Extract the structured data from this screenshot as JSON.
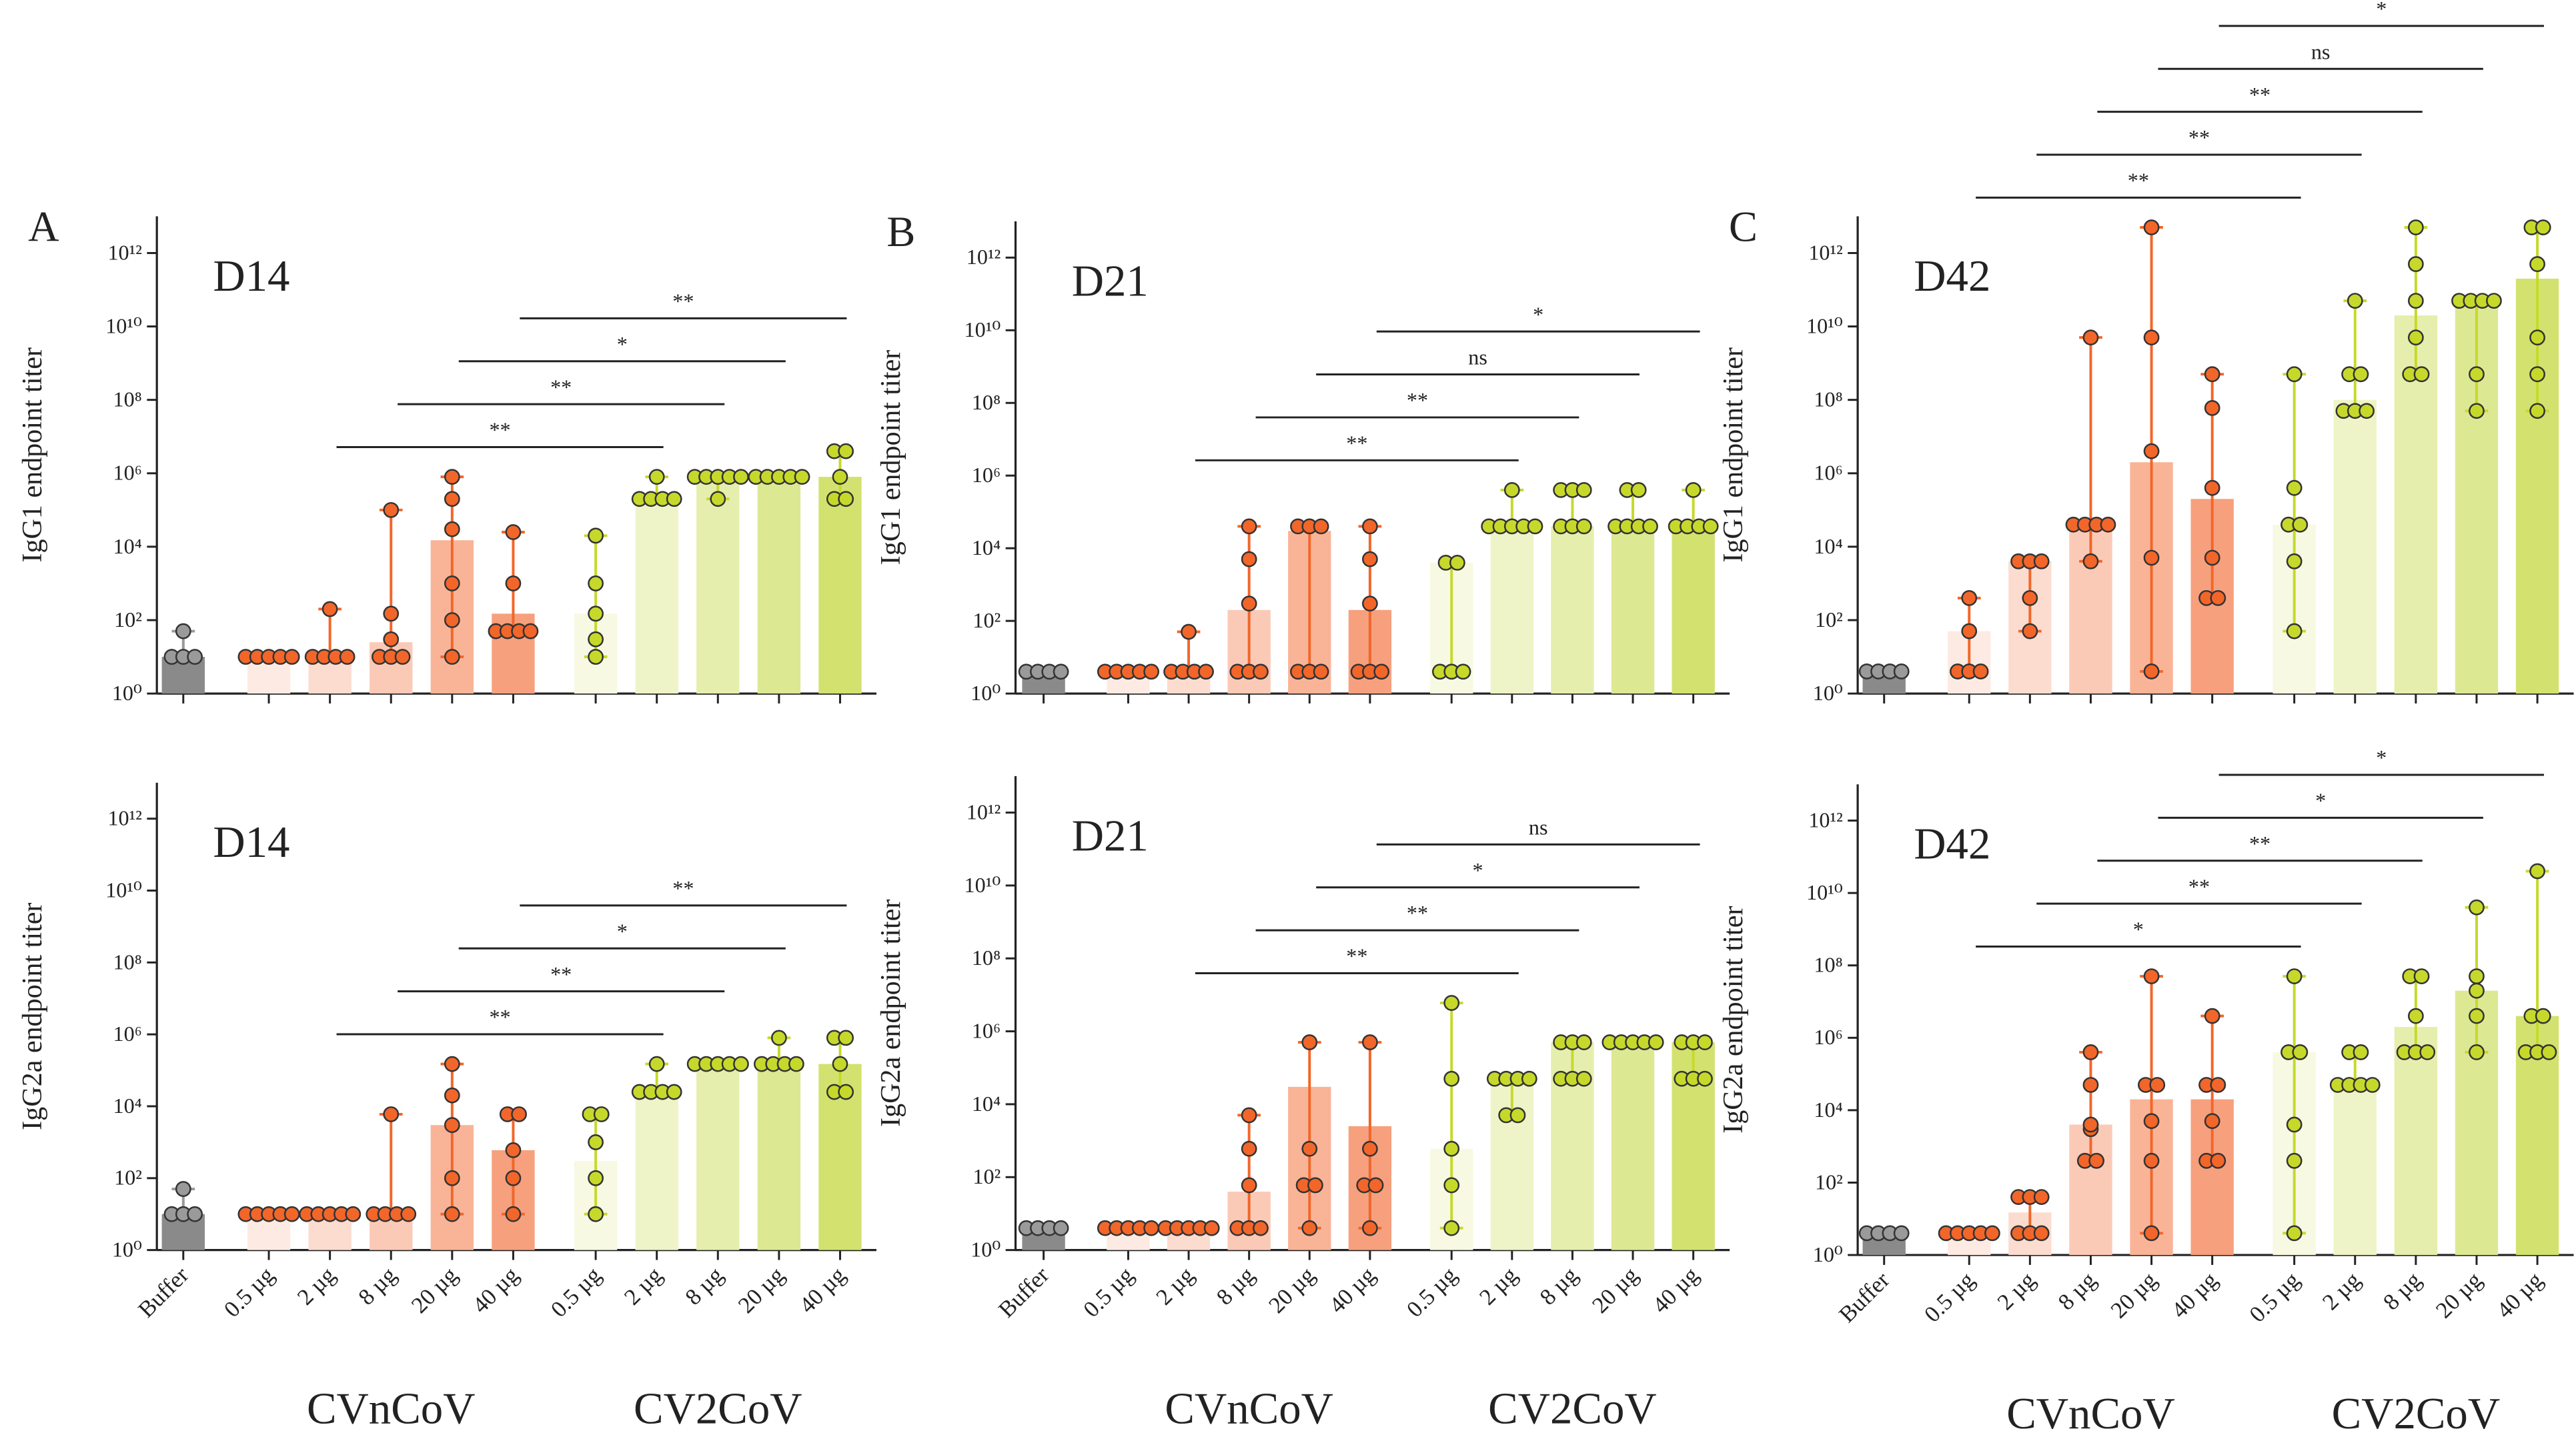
{
  "chart_data": [
    {
      "type": "bar",
      "panel": "A",
      "title": "D14",
      "ylabel": "IgG1 endpoint titer",
      "log": true,
      "values": [
        10,
        10,
        10,
        25,
        15000,
        150,
        150,
        200000,
        800000,
        800000,
        800000
      ],
      "points": [
        [
          10,
          10,
          10,
          50
        ],
        [
          10,
          10,
          10,
          10,
          10
        ],
        [
          10,
          10,
          10,
          10,
          200
        ],
        [
          10,
          10,
          10,
          30,
          150,
          100000
        ],
        [
          10,
          100,
          1000,
          30000,
          200000,
          800000
        ],
        [
          50,
          50,
          50,
          50,
          1000,
          25000
        ],
        [
          10,
          30,
          150,
          1000,
          20000
        ],
        [
          200000,
          200000,
          200000,
          200000,
          800000
        ],
        [
          200000,
          800000,
          800000,
          800000,
          800000,
          800000
        ],
        [
          800000,
          800000,
          800000,
          800000,
          800000
        ],
        [
          200000,
          200000,
          800000,
          4000000,
          4000000
        ]
      ],
      "colors": [
        "#8a8a8a",
        "#fdebe3",
        "#fcdccf",
        "#fbcab6",
        "#f9b497",
        "#f7a07e",
        "#f7f9e2",
        "#eff4c8",
        "#e6eead",
        "#dde893",
        "#d3e26e"
      ],
      "point_colors": [
        "#9a9a9a",
        "#f2662a",
        "#f2662a",
        "#f2662a",
        "#f2662a",
        "#f2662a",
        "#c6d92b",
        "#c6d92b",
        "#c6d92b",
        "#c6d92b",
        "#c6d92b"
      ],
      "ylim": [
        1,
        10000000000000.0
      ],
      "yticks": [
        {
          "value": 1,
          "label": "10⁰"
        },
        {
          "value": 100,
          "label": "10²"
        },
        {
          "value": 10000,
          "label": "10⁴"
        },
        {
          "value": 1000000,
          "label": "10⁶"
        },
        {
          "value": 100000000,
          "label": "10⁸"
        },
        {
          "value": 10000000000.0,
          "label": "10¹⁰"
        },
        {
          "value": 1000000000000.0,
          "label": "10¹²"
        }
      ],
      "brackets": [
        {
          "from": 2,
          "to": 7,
          "label": "**"
        },
        {
          "from": 3,
          "to": 8,
          "label": "**"
        },
        {
          "from": 4,
          "to": 9,
          "label": "*"
        },
        {
          "from": 5,
          "to": 10,
          "label": "**"
        }
      ]
    },
    {
      "type": "bar",
      "title": "D14",
      "ylabel": "IgG2a endpoint titer",
      "log": true,
      "categories": [
        "Buffer",
        "0.5 µg",
        "2 µg",
        "8 µg",
        "20 µg",
        "40 µg",
        "0.5 µg",
        "2 µg",
        "8 µg",
        "20 µg",
        "40 µg"
      ],
      "groups": [
        "CVnCoV",
        "CV2CoV"
      ],
      "values": [
        10,
        10,
        10,
        10,
        3000,
        600,
        300,
        25000,
        150000,
        150000,
        150000
      ],
      "points": [
        [
          10,
          10,
          10,
          50
        ],
        [
          10,
          10,
          10,
          10,
          10
        ],
        [
          10,
          10,
          10,
          10,
          10
        ],
        [
          10,
          10,
          10,
          10,
          6000
        ],
        [
          10,
          100,
          3000,
          20000,
          150000
        ],
        [
          10,
          100,
          600,
          6000,
          6000
        ],
        [
          10,
          100,
          1000,
          6000,
          6000
        ],
        [
          25000,
          25000,
          25000,
          25000,
          150000
        ],
        [
          150000,
          150000,
          150000,
          150000,
          150000
        ],
        [
          150000,
          150000,
          150000,
          150000,
          800000
        ],
        [
          25000,
          25000,
          150000,
          800000,
          800000
        ]
      ],
      "colors": [
        "#8a8a8a",
        "#fdebe3",
        "#fcdccf",
        "#fbcab6",
        "#f9b497",
        "#f7a07e",
        "#f7f9e2",
        "#eff4c8",
        "#e6eead",
        "#dde893",
        "#d3e26e"
      ],
      "point_colors": [
        "#9a9a9a",
        "#f2662a",
        "#f2662a",
        "#f2662a",
        "#f2662a",
        "#f2662a",
        "#c6d92b",
        "#c6d92b",
        "#c6d92b",
        "#c6d92b",
        "#c6d92b"
      ],
      "ylim": [
        1,
        10000000000000.0
      ],
      "yticks": [
        {
          "value": 1,
          "label": "10⁰"
        },
        {
          "value": 100,
          "label": "10²"
        },
        {
          "value": 10000,
          "label": "10⁴"
        },
        {
          "value": 1000000,
          "label": "10⁶"
        },
        {
          "value": 100000000,
          "label": "10⁸"
        },
        {
          "value": 10000000000.0,
          "label": "10¹⁰"
        },
        {
          "value": 1000000000000.0,
          "label": "10¹²"
        }
      ],
      "brackets": [
        {
          "from": 2,
          "to": 7,
          "label": "**"
        },
        {
          "from": 3,
          "to": 8,
          "label": "**"
        },
        {
          "from": 4,
          "to": 9,
          "label": "*"
        },
        {
          "from": 5,
          "to": 10,
          "label": "**"
        }
      ]
    },
    {
      "type": "bar",
      "panel": "B",
      "title": "D21",
      "ylabel": "IgG1 endpoint titer",
      "log": true,
      "values": [
        4,
        4,
        4,
        200,
        30000,
        200,
        4000,
        40000,
        40000,
        40000,
        40000
      ],
      "points": [
        [
          4,
          4,
          4,
          4
        ],
        [
          4,
          4,
          4,
          4,
          4
        ],
        [
          4,
          4,
          4,
          4,
          50
        ],
        [
          4,
          4,
          4,
          300,
          5000,
          40000
        ],
        [
          4,
          4,
          4,
          40000,
          40000,
          40000
        ],
        [
          4,
          4,
          4,
          300,
          5000,
          40000
        ],
        [
          4,
          4,
          4,
          4000,
          4000
        ],
        [
          40000,
          40000,
          40000,
          40000,
          40000,
          400000
        ],
        [
          40000,
          40000,
          40000,
          400000,
          400000,
          400000
        ],
        [
          40000,
          40000,
          40000,
          40000,
          400000,
          400000
        ],
        [
          40000,
          40000,
          40000,
          40000,
          400000
        ]
      ],
      "colors": [
        "#8a8a8a",
        "#fdebe3",
        "#fcdccf",
        "#fbcab6",
        "#f9b497",
        "#f7a07e",
        "#f7f9e2",
        "#eff4c8",
        "#e6eead",
        "#dde893",
        "#d3e26e"
      ],
      "point_colors": [
        "#9a9a9a",
        "#f2662a",
        "#f2662a",
        "#f2662a",
        "#f2662a",
        "#f2662a",
        "#c6d92b",
        "#c6d92b",
        "#c6d92b",
        "#c6d92b",
        "#c6d92b"
      ],
      "ylim": [
        1,
        10000000000000.0
      ],
      "yticks": [
        {
          "value": 1,
          "label": "10⁰"
        },
        {
          "value": 100,
          "label": "10²"
        },
        {
          "value": 10000,
          "label": "10⁴"
        },
        {
          "value": 1000000,
          "label": "10⁶"
        },
        {
          "value": 100000000,
          "label": "10⁸"
        },
        {
          "value": 10000000000.0,
          "label": "10¹⁰"
        },
        {
          "value": 1000000000000.0,
          "label": "10¹²"
        }
      ],
      "brackets": [
        {
          "from": 2,
          "to": 7,
          "label": "**"
        },
        {
          "from": 3,
          "to": 8,
          "label": "**"
        },
        {
          "from": 4,
          "to": 9,
          "label": "ns"
        },
        {
          "from": 5,
          "to": 10,
          "label": "*"
        }
      ]
    },
    {
      "type": "bar",
      "title": "D21",
      "ylabel": "IgG2a endpoint titer",
      "log": true,
      "categories": [
        "Buffer",
        "0.5 µg",
        "2 µg",
        "8 µg",
        "20 µg",
        "40 µg",
        "0.5 µg",
        "2 µg",
        "8 µg",
        "20 µg",
        "40 µg"
      ],
      "groups": [
        "CVnCoV",
        "CV2CoV"
      ],
      "values": [
        4,
        4,
        4,
        40,
        30000,
        2500,
        600,
        50000,
        500000,
        500000,
        500000
      ],
      "points": [
        [
          4,
          4,
          4,
          4
        ],
        [
          4,
          4,
          4,
          4,
          4
        ],
        [
          4,
          4,
          4,
          4,
          4
        ],
        [
          4,
          4,
          4,
          60,
          600,
          5000
        ],
        [
          4,
          60,
          60,
          600,
          500000
        ],
        [
          4,
          60,
          60,
          600,
          500000
        ],
        [
          4,
          60,
          600,
          50000,
          6000000
        ],
        [
          5000,
          5000,
          50000,
          50000,
          50000,
          50000
        ],
        [
          50000,
          50000,
          50000,
          500000,
          500000,
          500000
        ],
        [
          500000,
          500000,
          500000,
          500000,
          500000
        ],
        [
          50000,
          50000,
          50000,
          500000,
          500000,
          500000
        ]
      ],
      "colors": [
        "#8a8a8a",
        "#fdebe3",
        "#fcdccf",
        "#fbcab6",
        "#f9b497",
        "#f7a07e",
        "#f7f9e2",
        "#eff4c8",
        "#e6eead",
        "#dde893",
        "#d3e26e"
      ],
      "point_colors": [
        "#9a9a9a",
        "#f2662a",
        "#f2662a",
        "#f2662a",
        "#f2662a",
        "#f2662a",
        "#c6d92b",
        "#c6d92b",
        "#c6d92b",
        "#c6d92b",
        "#c6d92b"
      ],
      "ylim": [
        1,
        10000000000000.0
      ],
      "yticks": [
        {
          "value": 1,
          "label": "10⁰"
        },
        {
          "value": 100,
          "label": "10²"
        },
        {
          "value": 10000,
          "label": "10⁴"
        },
        {
          "value": 1000000,
          "label": "10⁶"
        },
        {
          "value": 100000000,
          "label": "10⁸"
        },
        {
          "value": 10000000000.0,
          "label": "10¹⁰"
        },
        {
          "value": 1000000000000.0,
          "label": "10¹²"
        }
      ],
      "brackets": [
        {
          "from": 2,
          "to": 7,
          "label": "**"
        },
        {
          "from": 3,
          "to": 8,
          "label": "**"
        },
        {
          "from": 4,
          "to": 9,
          "label": "*"
        },
        {
          "from": 5,
          "to": 10,
          "label": "ns"
        }
      ]
    },
    {
      "type": "bar",
      "panel": "C",
      "title": "D42",
      "ylabel": "IgG1 endpoint titer",
      "log": true,
      "values": [
        4,
        50,
        4000,
        40000,
        2000000,
        200000,
        40000,
        100000000,
        20000000000,
        50000000000,
        200000000000
      ],
      "points": [
        [
          4,
          4,
          4,
          4
        ],
        [
          4,
          4,
          4,
          50,
          400
        ],
        [
          50,
          400,
          4000,
          4000,
          4000
        ],
        [
          4000,
          40000,
          40000,
          40000,
          40000,
          5000000000
        ],
        [
          4,
          5000,
          4000000,
          5000000000,
          5000000000000
        ],
        [
          400,
          400,
          5000,
          400000,
          60000000,
          500000000
        ],
        [
          50,
          4000,
          40000,
          40000,
          400000,
          500000000
        ],
        [
          50000000,
          50000000,
          50000000,
          500000000,
          500000000,
          50000000000
        ],
        [
          500000000,
          500000000,
          5000000000,
          50000000000,
          500000000000,
          5000000000000
        ],
        [
          50000000,
          500000000,
          50000000000,
          50000000000,
          50000000000,
          50000000000
        ],
        [
          50000000,
          500000000,
          5000000000,
          500000000000,
          5000000000000,
          5000000000000
        ]
      ],
      "colors": [
        "#8a8a8a",
        "#fdebe3",
        "#fcdccf",
        "#fbcab6",
        "#f9b497",
        "#f7a07e",
        "#f7f9e2",
        "#eff4c8",
        "#e6eead",
        "#dde893",
        "#d3e26e"
      ],
      "point_colors": [
        "#9a9a9a",
        "#f2662a",
        "#f2662a",
        "#f2662a",
        "#f2662a",
        "#f2662a",
        "#c6d92b",
        "#c6d92b",
        "#c6d92b",
        "#c6d92b",
        "#c6d92b"
      ],
      "ylim": [
        1,
        10000000000000.0
      ],
      "yticks": [
        {
          "value": 1,
          "label": "10⁰"
        },
        {
          "value": 100,
          "label": "10²"
        },
        {
          "value": 10000,
          "label": "10⁴"
        },
        {
          "value": 1000000,
          "label": "10⁶"
        },
        {
          "value": 100000000,
          "label": "10⁸"
        },
        {
          "value": 10000000000.0,
          "label": "10¹⁰"
        },
        {
          "value": 1000000000000.0,
          "label": "10¹²"
        }
      ],
      "brackets": [
        {
          "from": 1,
          "to": 6,
          "label": "**"
        },
        {
          "from": 2,
          "to": 7,
          "label": "**"
        },
        {
          "from": 3,
          "to": 8,
          "label": "**"
        },
        {
          "from": 4,
          "to": 9,
          "label": "ns"
        },
        {
          "from": 5,
          "to": 10,
          "label": "*"
        }
      ]
    },
    {
      "type": "bar",
      "title": "D42",
      "ylabel": "IgG2a endpoint titer",
      "log": true,
      "categories": [
        "Buffer",
        "0.5 µg",
        "2 µg",
        "8 µg",
        "20 µg",
        "40 µg",
        "0.5 µg",
        "2 µg",
        "8 µg",
        "20 µg",
        "40 µg"
      ],
      "groups": [
        "CVnCoV",
        "CV2CoV"
      ],
      "values": [
        4,
        4,
        15,
        4000,
        20000,
        20000,
        400000,
        50000,
        2000000,
        20000000,
        4000000
      ],
      "points": [
        [
          4,
          4,
          4,
          4
        ],
        [
          4,
          4,
          4,
          4,
          4
        ],
        [
          4,
          4,
          4,
          40,
          40,
          40
        ],
        [
          400,
          400,
          3000,
          4000,
          50000,
          400000
        ],
        [
          4,
          400,
          5000,
          50000,
          50000,
          50000000
        ],
        [
          400,
          400,
          5000,
          50000,
          50000,
          4000000
        ],
        [
          4,
          400,
          4000,
          400000,
          400000,
          50000000
        ],
        [
          50000,
          50000,
          50000,
          50000,
          400000,
          400000
        ],
        [
          400000,
          400000,
          400000,
          4000000,
          50000000,
          50000000
        ],
        [
          400000,
          4000000,
          20000000,
          50000000,
          4000000000
        ],
        [
          400000,
          400000,
          400000,
          4000000,
          4000000,
          40000000000
        ]
      ],
      "colors": [
        "#8a8a8a",
        "#fdebe3",
        "#fcdccf",
        "#fbcab6",
        "#f9b497",
        "#f7a07e",
        "#f7f9e2",
        "#eff4c8",
        "#e6eead",
        "#dde893",
        "#d3e26e"
      ],
      "point_colors": [
        "#9a9a9a",
        "#f2662a",
        "#f2662a",
        "#f2662a",
        "#f2662a",
        "#f2662a",
        "#c6d92b",
        "#c6d92b",
        "#c6d92b",
        "#c6d92b",
        "#c6d92b"
      ],
      "ylim": [
        1,
        10000000000000.0
      ],
      "yticks": [
        {
          "value": 1,
          "label": "10⁰"
        },
        {
          "value": 100,
          "label": "10²"
        },
        {
          "value": 10000,
          "label": "10⁴"
        },
        {
          "value": 1000000,
          "label": "10⁶"
        },
        {
          "value": 100000000,
          "label": "10⁸"
        },
        {
          "value": 10000000000.0,
          "label": "10¹⁰"
        },
        {
          "value": 1000000000000.0,
          "label": "10¹²"
        }
      ],
      "brackets": [
        {
          "from": 1,
          "to": 6,
          "label": "*"
        },
        {
          "from": 2,
          "to": 7,
          "label": "**"
        },
        {
          "from": 3,
          "to": 8,
          "label": "**"
        },
        {
          "from": 4,
          "to": 9,
          "label": "*"
        },
        {
          "from": 5,
          "to": 10,
          "label": "*"
        }
      ]
    }
  ]
}
